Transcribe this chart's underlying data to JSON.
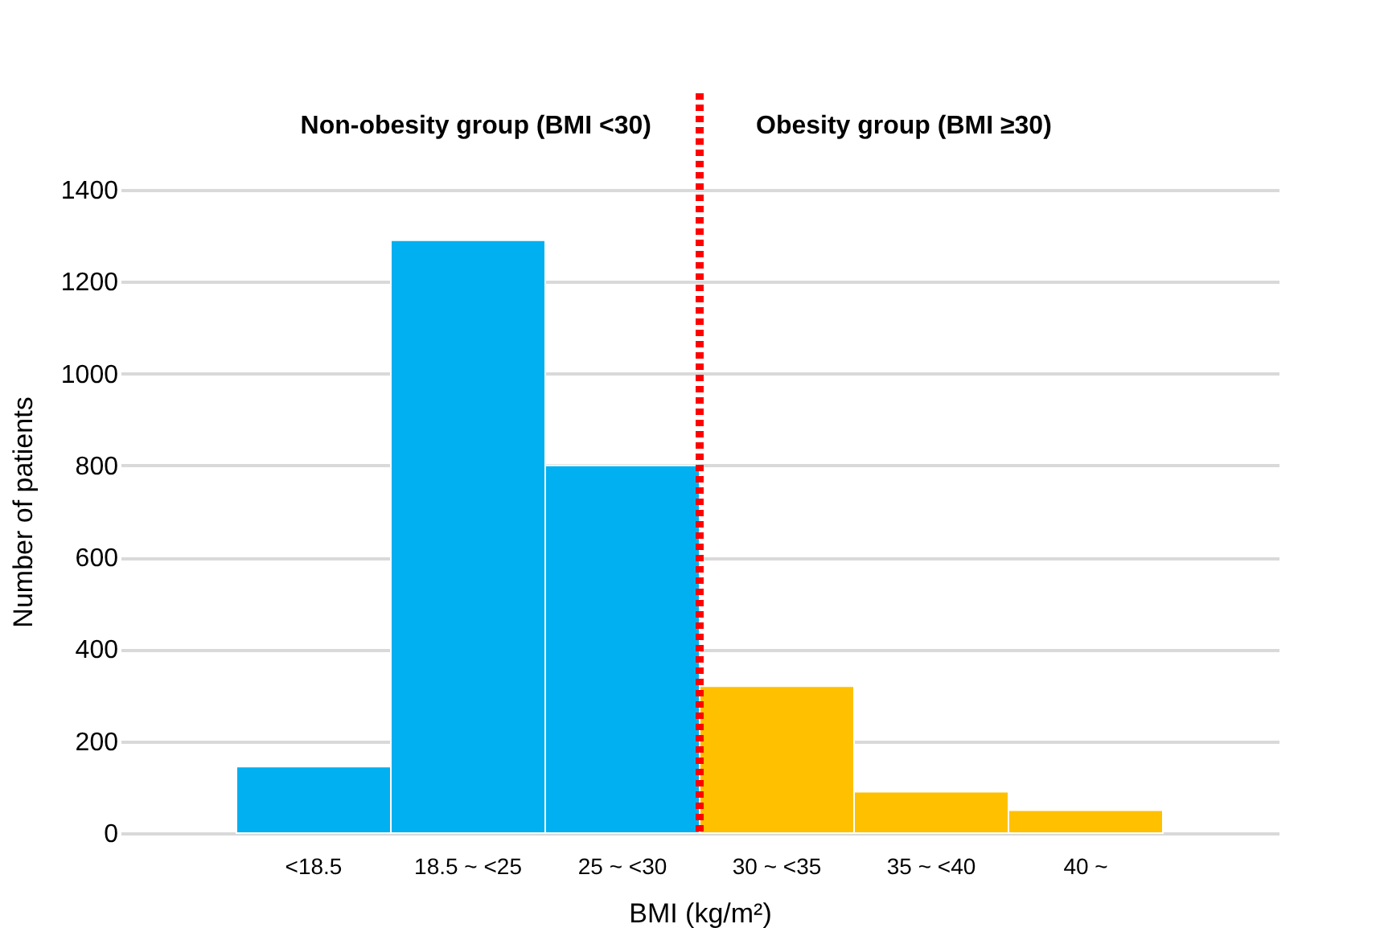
{
  "chart_data": {
    "type": "bar",
    "categories": [
      "<18.5",
      "18.5 ~ <25",
      "25 ~ <30",
      "30 ~ <35",
      "35 ~ <40",
      "40 ~"
    ],
    "values": [
      145,
      1290,
      800,
      320,
      90,
      50
    ],
    "colors": [
      "#00b0f0",
      "#00b0f0",
      "#00b0f0",
      "#ffc000",
      "#ffc000",
      "#ffc000"
    ],
    "xlabel": "BMI (kg/m²)",
    "ylabel": "Number of patients",
    "ylim": [
      0,
      1400
    ],
    "yticks": [
      0,
      200,
      400,
      600,
      800,
      1000,
      1200,
      1400
    ],
    "grid": "y",
    "ref_lines": [
      {
        "axis": "x",
        "value": "30 ~ <35",
        "color": "#ff0000",
        "line_style": "dotted"
      }
    ],
    "annotations": [
      "Non-obesity group (BMI <30)",
      "Obesity group (BMI ≥30)"
    ]
  }
}
